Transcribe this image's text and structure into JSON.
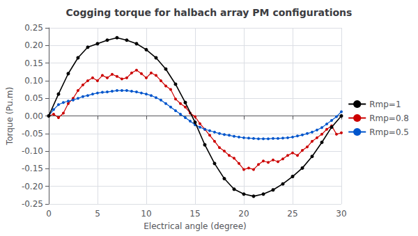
{
  "chart_data": {
    "type": "line",
    "title": "Cogging torque for halbach array PM configurations",
    "xlabel": "Electrical angle (degree)",
    "ylabel": "Torque (Pu.m)",
    "xlim": [
      0,
      30
    ],
    "ylim": [
      -0.25,
      0.25
    ],
    "xticks": [
      0,
      5,
      10,
      15,
      20,
      25,
      30
    ],
    "yticks": [
      -0.25,
      {
        "value": -0.2,
        "label": "-0.20"
      },
      -0.15,
      {
        "value": -0.1,
        "label": "-0.10"
      },
      -0.05,
      {
        "value": 0,
        "label": "0.00"
      },
      0.05,
      {
        "value": 0.1,
        "label": "0.10"
      },
      0.15,
      {
        "value": 0.2,
        "label": "0.20"
      },
      0.25
    ],
    "grid": true,
    "legend": "right",
    "series": [
      {
        "name": "Rmp=1",
        "color": "#000000",
        "marker": "circle",
        "line_style": "solid",
        "x": [
          0,
          1,
          2,
          3,
          4,
          5,
          6,
          7,
          8,
          9,
          10,
          11,
          12,
          13,
          14,
          15,
          16,
          17,
          18,
          19,
          20,
          21,
          22,
          23,
          24,
          25,
          26,
          27,
          28,
          29,
          30
        ],
        "values": [
          0.0,
          0.062,
          0.12,
          0.165,
          0.195,
          0.205,
          0.215,
          0.222,
          0.215,
          0.205,
          0.188,
          0.165,
          0.133,
          0.09,
          0.038,
          -0.018,
          -0.082,
          -0.135,
          -0.178,
          -0.208,
          -0.222,
          -0.228,
          -0.222,
          -0.21,
          -0.193,
          -0.172,
          -0.148,
          -0.115,
          -0.075,
          -0.032,
          0.0
        ]
      },
      {
        "name": "Rmp=0.8",
        "color": "#cc0000",
        "marker": "circle",
        "line_style": "solid",
        "x": [
          0,
          0.5,
          1,
          1.5,
          2,
          2.5,
          3,
          3.5,
          4,
          4.5,
          5,
          5.5,
          6,
          6.5,
          7,
          7.5,
          8,
          8.5,
          9,
          9.5,
          10,
          10.5,
          11,
          11.5,
          12,
          12.5,
          13,
          13.5,
          14,
          14.5,
          15,
          15.5,
          16,
          16.5,
          17,
          17.5,
          18,
          18.5,
          19,
          19.5,
          20,
          20.5,
          21,
          21.5,
          22,
          22.5,
          23,
          23.5,
          24,
          24.5,
          25,
          25.5,
          26,
          26.5,
          27,
          27.5,
          28,
          28.5,
          29,
          29.5,
          30
        ],
        "values": [
          0.0,
          0.005,
          -0.005,
          0.008,
          0.035,
          0.05,
          0.072,
          0.088,
          0.1,
          0.108,
          0.1,
          0.115,
          0.108,
          0.118,
          0.112,
          0.105,
          0.108,
          0.122,
          0.13,
          0.12,
          0.108,
          0.122,
          0.115,
          0.1,
          0.085,
          0.075,
          0.048,
          0.035,
          0.025,
          0.008,
          -0.002,
          -0.022,
          -0.038,
          -0.055,
          -0.072,
          -0.09,
          -0.1,
          -0.112,
          -0.12,
          -0.135,
          -0.152,
          -0.148,
          -0.152,
          -0.138,
          -0.128,
          -0.132,
          -0.125,
          -0.13,
          -0.122,
          -0.112,
          -0.105,
          -0.112,
          -0.098,
          -0.088,
          -0.072,
          -0.062,
          -0.052,
          -0.038,
          -0.028,
          -0.052,
          -0.048
        ]
      },
      {
        "name": "Rmp=0.5",
        "color": "#0055cc",
        "marker": "circle",
        "line_style": "solid",
        "x": [
          0,
          0.5,
          1,
          1.5,
          2,
          2.5,
          3,
          3.5,
          4,
          4.5,
          5,
          5.5,
          6,
          6.5,
          7,
          7.5,
          8,
          8.5,
          9,
          9.5,
          10,
          10.5,
          11,
          11.5,
          12,
          12.5,
          13,
          13.5,
          14,
          14.5,
          15,
          15.5,
          16,
          16.5,
          17,
          17.5,
          18,
          18.5,
          19,
          19.5,
          20,
          20.5,
          21,
          21.5,
          22,
          22.5,
          23,
          23.5,
          24,
          24.5,
          25,
          25.5,
          26,
          26.5,
          27,
          27.5,
          28,
          28.5,
          29,
          29.5,
          30
        ],
        "values": [
          0.0,
          0.018,
          0.032,
          0.038,
          0.042,
          0.045,
          0.05,
          0.055,
          0.058,
          0.062,
          0.065,
          0.067,
          0.068,
          0.07,
          0.072,
          0.072,
          0.072,
          0.07,
          0.068,
          0.065,
          0.062,
          0.058,
          0.052,
          0.045,
          0.035,
          0.025,
          0.015,
          0.005,
          -0.005,
          -0.015,
          -0.025,
          -0.032,
          -0.038,
          -0.042,
          -0.046,
          -0.05,
          -0.053,
          -0.055,
          -0.058,
          -0.06,
          -0.062,
          -0.063,
          -0.064,
          -0.065,
          -0.065,
          -0.065,
          -0.064,
          -0.064,
          -0.063,
          -0.062,
          -0.06,
          -0.057,
          -0.054,
          -0.05,
          -0.046,
          -0.04,
          -0.033,
          -0.023,
          -0.013,
          -0.002,
          0.012
        ]
      }
    ]
  }
}
